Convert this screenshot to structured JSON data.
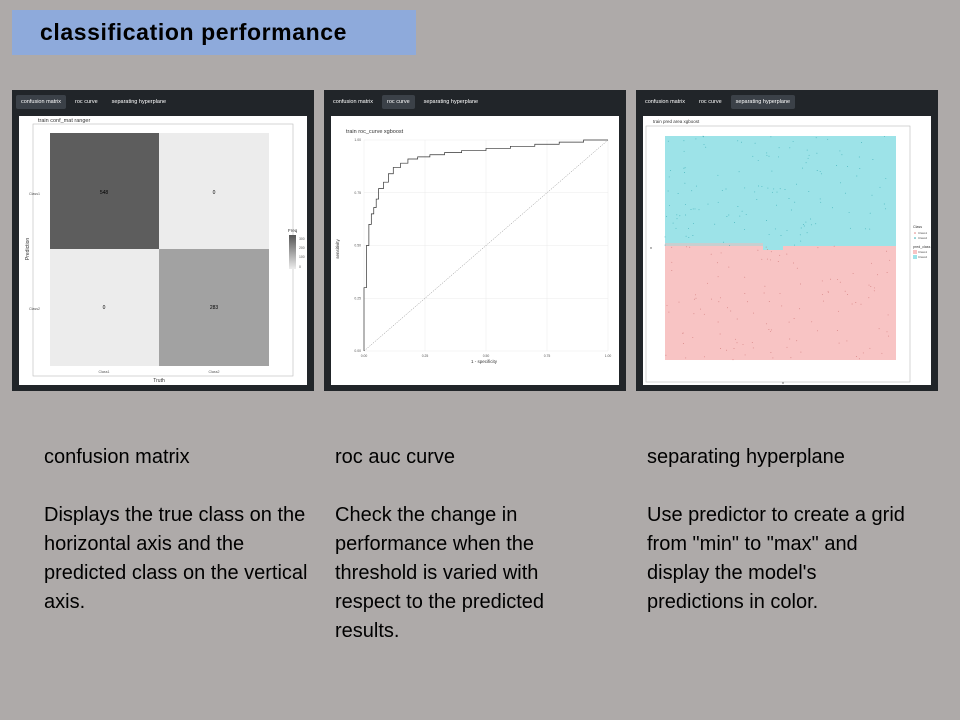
{
  "slide": {
    "title": "classification performance"
  },
  "panels": [
    {
      "tabs": [
        "confusion matrix",
        "roc curve",
        "separating hyperplane"
      ],
      "active_tab": 0,
      "plot": {
        "title": "train conf_mat ranger",
        "xlabel": "Truth",
        "ylabel": "Prediction",
        "x_ticks": [
          "Class1",
          "Class2"
        ],
        "y_ticks": [
          "Class1",
          "Class2"
        ],
        "cells": [
          {
            "label": "548",
            "value": 548
          },
          {
            "label": "0",
            "value": 0
          },
          {
            "label": "0",
            "value": 0
          },
          {
            "label": "283",
            "value": 283
          }
        ],
        "legend_title": "Freq",
        "legend_ticks": [
          "300",
          "200",
          "100",
          "0"
        ]
      }
    },
    {
      "tabs": [
        "confusion matrix",
        "roc curve",
        "separating hyperplane"
      ],
      "active_tab": 1,
      "plot": {
        "title": "train roc_curve xgboost",
        "xlabel": "1 - specificity",
        "ylabel": "sensitivity",
        "x_ticks": [
          "0.00",
          "0.25",
          "0.50",
          "0.75",
          "1.00"
        ],
        "y_ticks": [
          "0.00",
          "0.25",
          "0.50",
          "0.75",
          "1.00"
        ]
      }
    },
    {
      "tabs": [
        "confusion matrix",
        "roc curve",
        "separating hyperplane"
      ],
      "active_tab": 2,
      "plot": {
        "title": "train pred area xgboost",
        "xlabel": "x",
        "ylabel": "x",
        "legend_class_title": "Class",
        "legend_class_items": [
          "Class1",
          "Class2"
        ],
        "legend_pred_title": "pred_class",
        "legend_pred_items": [
          "Class1",
          "Class2"
        ],
        "colors": {
          "class1": "#f8c4c4",
          "class2": "#9de3e8"
        }
      }
    }
  ],
  "chart_data": [
    {
      "type": "heatmap",
      "title": "train conf_mat ranger",
      "xlabel": "Truth",
      "ylabel": "Prediction",
      "x": [
        "Class1",
        "Class2"
      ],
      "y": [
        "Class1",
        "Class2"
      ],
      "values": [
        [
          548,
          0
        ],
        [
          0,
          283
        ]
      ]
    },
    {
      "type": "line",
      "title": "train roc_curve xgboost",
      "xlabel": "1 - specificity",
      "ylabel": "sensitivity",
      "xlim": [
        0,
        1
      ],
      "ylim": [
        0,
        1
      ],
      "series": [
        {
          "x": [
            0,
            0.01,
            0.02,
            0.03,
            0.04,
            0.05,
            0.06,
            0.08,
            0.1,
            0.12,
            0.15,
            0.18,
            0.22,
            0.27,
            0.33,
            0.4,
            0.5,
            0.6,
            0.7,
            0.8,
            0.9,
            1.0
          ],
          "y": [
            0,
            0.3,
            0.5,
            0.6,
            0.65,
            0.68,
            0.72,
            0.77,
            0.8,
            0.84,
            0.87,
            0.89,
            0.91,
            0.92,
            0.93,
            0.94,
            0.95,
            0.96,
            0.97,
            0.98,
            0.99,
            1.0
          ]
        },
        {
          "x": [
            0,
            1
          ],
          "y": [
            0,
            1
          ]
        }
      ]
    }
  ],
  "captions": [
    {
      "heading": "confusion matrix",
      "text": "Displays the true class on the horizontal axis and the predicted class on the vertical axis."
    },
    {
      "heading": "roc auc curve",
      "text": "Check the change in performance when the threshold is varied with respect to the predicted results."
    },
    {
      "heading": "separating hyperplane",
      "text": "Use predictor to create a grid from \"min\" to \"max\" and display the model's predictions in color."
    }
  ]
}
